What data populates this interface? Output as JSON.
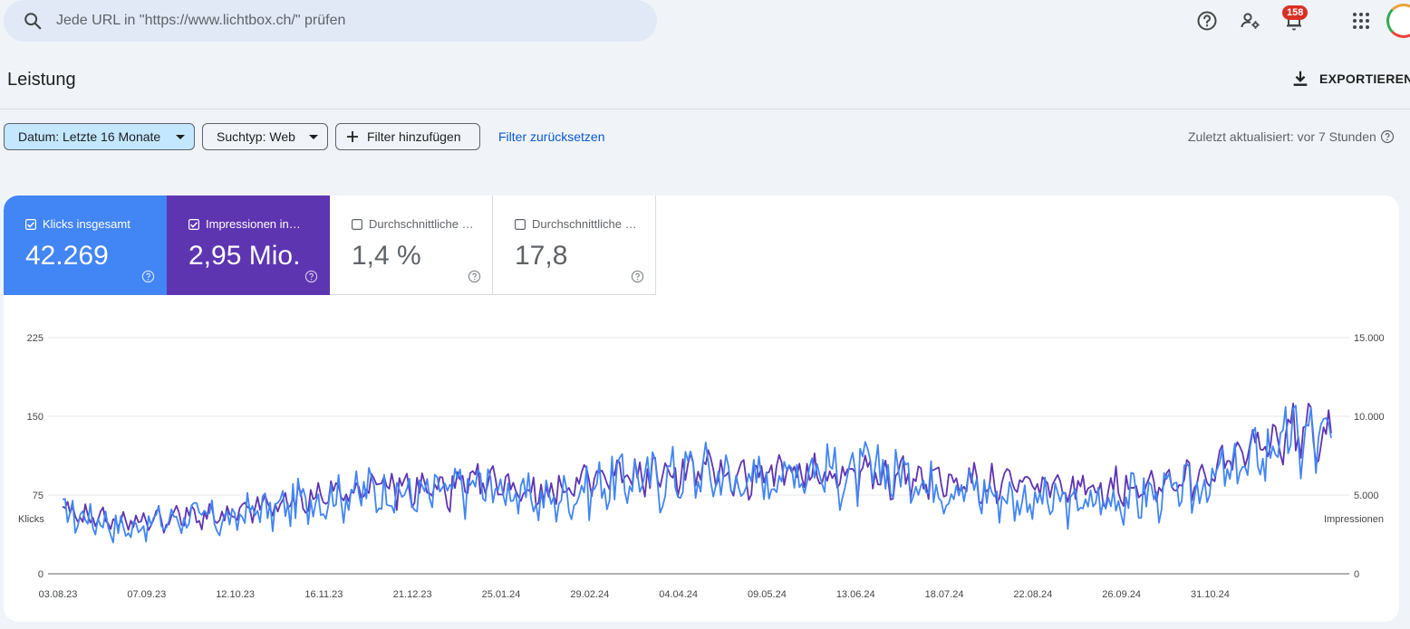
{
  "search": {
    "placeholder": "Jede URL in \"https://www.lichtbox.ch/\" prüfen",
    "icon": "search-icon"
  },
  "topbar": {
    "icons": [
      "help-icon",
      "manage-users-icon",
      "notifications-icon",
      "apps-grid-icon"
    ],
    "notification_count": "158"
  },
  "page": {
    "title": "Leistung",
    "export_label": "EXPORTIEREN"
  },
  "filters": {
    "date_label": "Datum: Letzte 16 Monate",
    "search_type_label": "Suchtyp: Web",
    "add_filter_label": "Filter hinzufügen",
    "reset_label": "Filter zurücksetzen",
    "last_updated": "Zuletzt aktualisiert: vor 7 Stunden"
  },
  "metrics": [
    {
      "label": "Klicks insgesamt",
      "value": "42.269",
      "checked": true,
      "color": "#4285f4"
    },
    {
      "label": "Impressionen ins…",
      "value": "2,95 Mio.",
      "checked": true,
      "color": "#5e35b1"
    },
    {
      "label": "Durchschnittliche …",
      "value": "1,4 %",
      "checked": false,
      "color": "#ffffff"
    },
    {
      "label": "Durchschnittliche …",
      "value": "17,8",
      "checked": false,
      "color": "#ffffff"
    }
  ],
  "chart_data": {
    "type": "line",
    "ylabel_left": "Klicks",
    "ylabel_right": "Impressionen",
    "y_left_ticks": [
      "0",
      "75",
      "150",
      "225"
    ],
    "y_right_ticks": [
      "0",
      "5.000",
      "10.000",
      "15.000"
    ],
    "y_left_range": [
      0,
      225
    ],
    "y_right_range": [
      0,
      15000
    ],
    "x_ticks": [
      "03.08.23",
      "07.09.23",
      "12.10.23",
      "16.11.23",
      "21.12.23",
      "25.01.24",
      "29.02.24",
      "04.04.24",
      "09.05.24",
      "13.06.24",
      "18.07.24",
      "22.08.24",
      "26.09.24",
      "31.10.24"
    ],
    "x_range": [
      "03.08.23",
      "16.12.24"
    ],
    "grid": true,
    "series": [
      {
        "name": "Klicks insgesamt",
        "axis": "left",
        "color": "#4285f4",
        "weekly_values": [
          58,
          55,
          50,
          42,
          48,
          52,
          55,
          53,
          50,
          62,
          60,
          68,
          72,
          75,
          78,
          80,
          76,
          74,
          78,
          82,
          84,
          80,
          72,
          70,
          76,
          82,
          88,
          92,
          90,
          94,
          98,
          95,
          88,
          90,
          96,
          102,
          100,
          92,
          96,
          98,
          94,
          88,
          84,
          82,
          76,
          72,
          70,
          68,
          66,
          68,
          72,
          74,
          76,
          78,
          86,
          94,
          104,
          120,
          128,
          130,
          124
        ]
      },
      {
        "name": "Impressionen insgesamt",
        "axis": "right",
        "color": "#5e35b1",
        "weekly_values": [
          3800,
          3700,
          3500,
          3300,
          3400,
          3500,
          3700,
          3600,
          3500,
          4200,
          4300,
          4600,
          4900,
          5100,
          5400,
          5600,
          5500,
          5400,
          5300,
          5500,
          5800,
          5700,
          5300,
          5200,
          5500,
          5900,
          6100,
          6300,
          6200,
          6400,
          6600,
          6500,
          6200,
          6200,
          6400,
          6600,
          6500,
          6300,
          6300,
          6300,
          6200,
          6000,
          5800,
          5800,
          5700,
          5600,
          5600,
          5500,
          5400,
          5500,
          5600,
          5700,
          5900,
          6000,
          6400,
          7000,
          7600,
          8400,
          8800,
          9000,
          9200
        ]
      }
    ]
  }
}
